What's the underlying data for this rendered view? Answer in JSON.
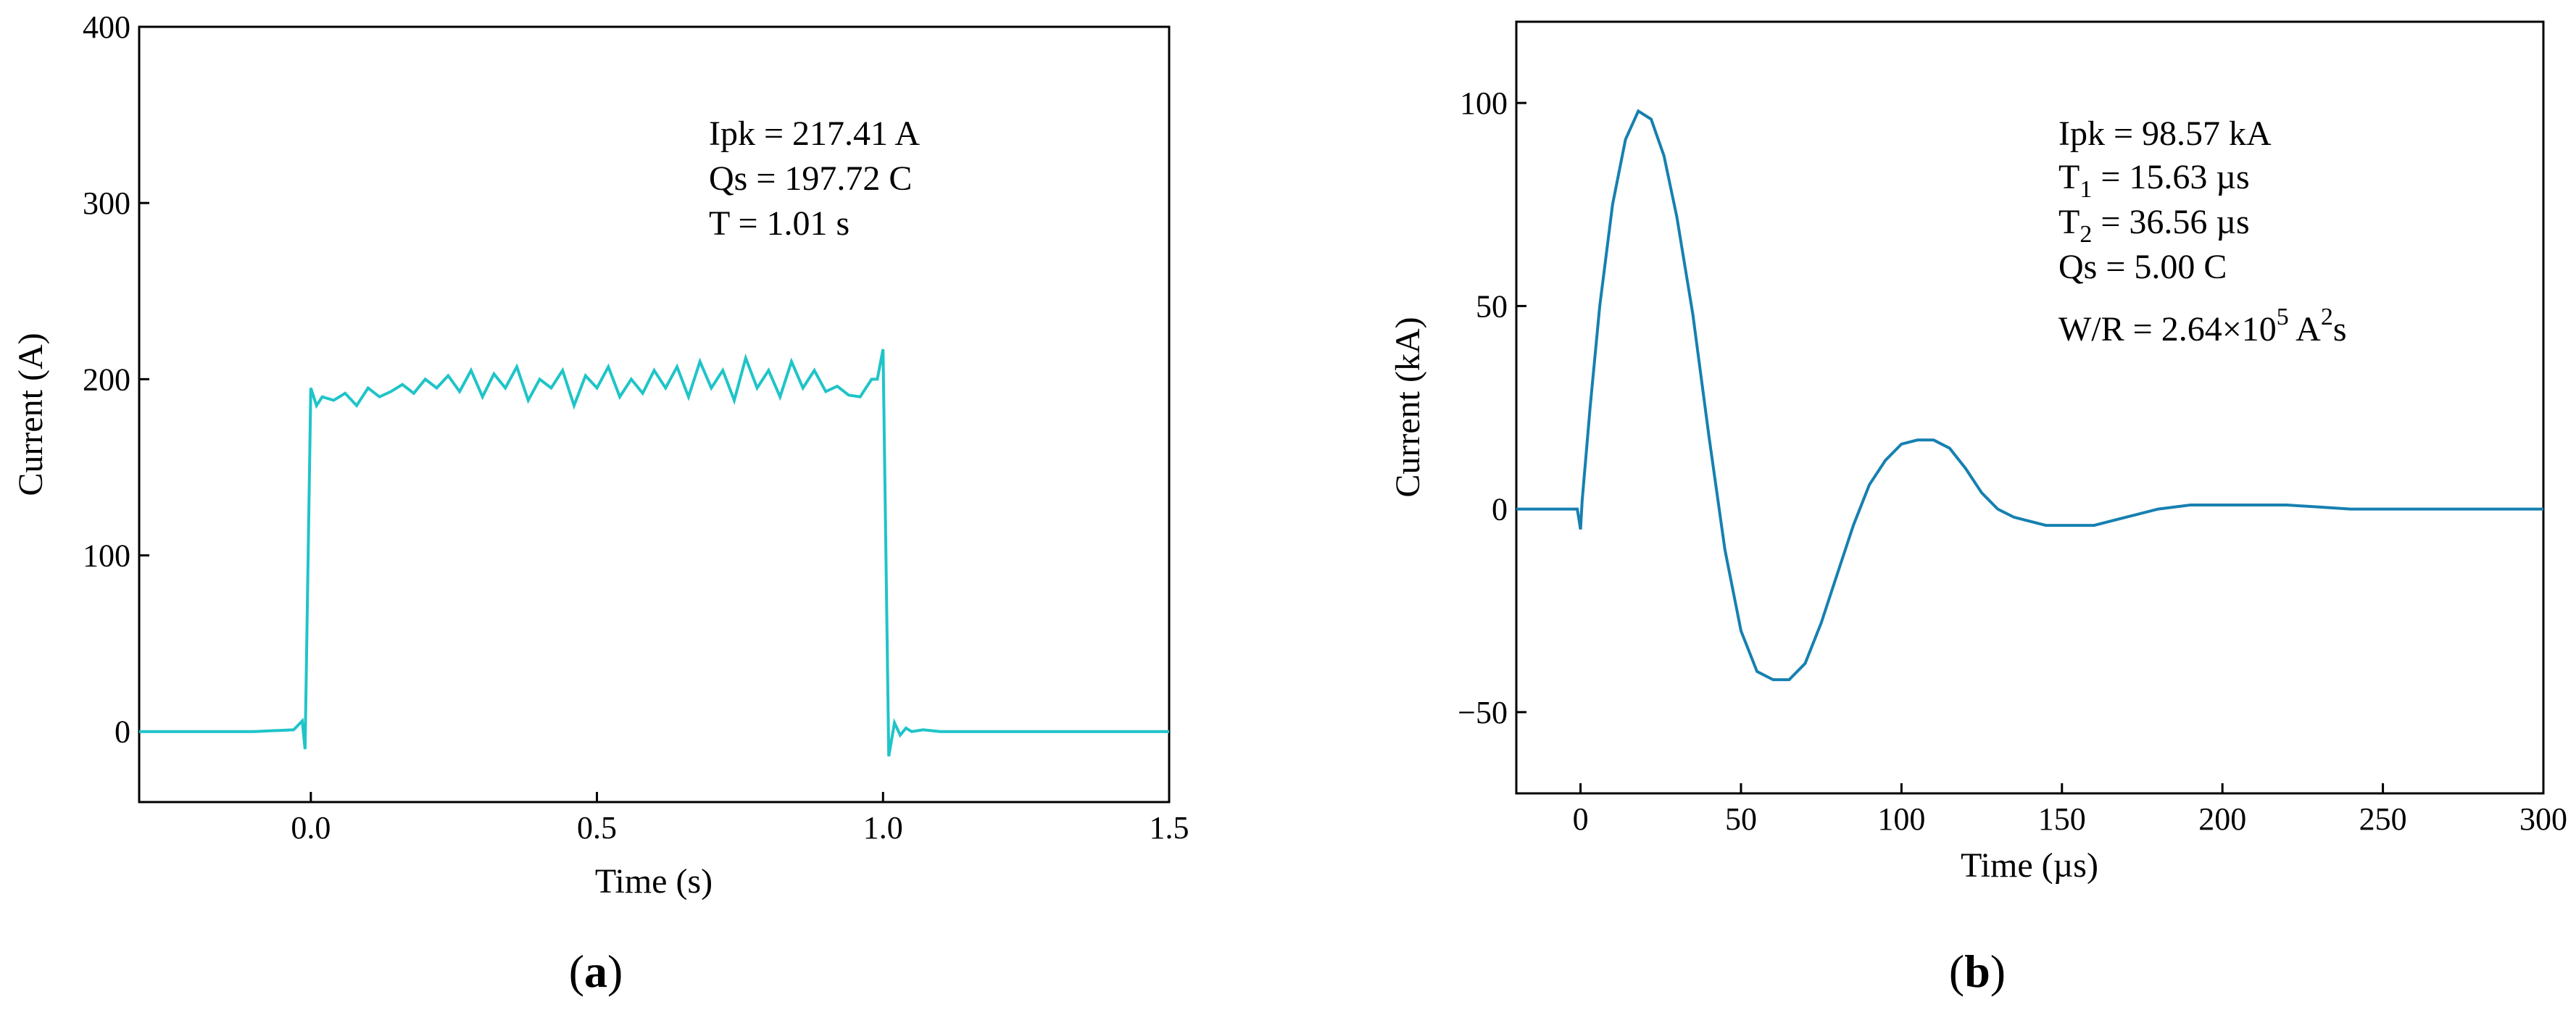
{
  "chart_data": [
    {
      "type": "line",
      "panel_label": "(a)",
      "xlabel": "Time (s)",
      "ylabel": "Current (A)",
      "xlim": [
        -0.3,
        1.5
      ],
      "ylim": [
        -40,
        400
      ],
      "xticks": [
        0.0,
        0.5,
        1.0,
        1.5
      ],
      "xtick_labels": [
        "0.0",
        "0.5",
        "1.0",
        "1.5"
      ],
      "yticks": [
        0,
        100,
        200,
        300,
        400
      ],
      "ytick_labels": [
        "0",
        "100",
        "200",
        "300",
        "400"
      ],
      "grid": false,
      "color": "#1fc4c8",
      "annotations": [
        "Ipk = 217.41 A",
        "Qs = 197.72 C",
        "T = 1.01 s"
      ],
      "series": [
        {
          "x": [
            -0.3,
            -0.2,
            -0.1,
            -0.03,
            -0.015,
            -0.01,
            0.0,
            0.01,
            0.02,
            0.04,
            0.06,
            0.08,
            0.1,
            0.12,
            0.14,
            0.16,
            0.18,
            0.2,
            0.22,
            0.24,
            0.26,
            0.28,
            0.3,
            0.32,
            0.34,
            0.36,
            0.38,
            0.4,
            0.42,
            0.44,
            0.46,
            0.48,
            0.5,
            0.52,
            0.54,
            0.56,
            0.58,
            0.6,
            0.62,
            0.64,
            0.66,
            0.68,
            0.7,
            0.72,
            0.74,
            0.76,
            0.78,
            0.8,
            0.82,
            0.84,
            0.86,
            0.88,
            0.9,
            0.92,
            0.94,
            0.96,
            0.98,
            0.99,
            1.0,
            1.01,
            1.02,
            1.03,
            1.04,
            1.05,
            1.07,
            1.1,
            1.2,
            1.3,
            1.4,
            1.5
          ],
          "y": [
            0,
            0,
            0,
            1,
            6,
            -10,
            195,
            185,
            190,
            188,
            192,
            185,
            195,
            190,
            193,
            197,
            192,
            200,
            195,
            202,
            193,
            205,
            190,
            203,
            195,
            207,
            188,
            200,
            195,
            205,
            185,
            202,
            195,
            207,
            190,
            200,
            192,
            205,
            195,
            207,
            190,
            210,
            195,
            205,
            188,
            212,
            195,
            205,
            190,
            210,
            195,
            205,
            193,
            196,
            191,
            190,
            200,
            200,
            217,
            -14,
            5,
            -2,
            2,
            0,
            1,
            0,
            0,
            0,
            0,
            0
          ]
        }
      ]
    },
    {
      "type": "line",
      "panel_label": "(b)",
      "xlabel": "Time (µs)",
      "ylabel": "Current (kA)",
      "xlim": [
        -20,
        300
      ],
      "ylim": [
        -70,
        120
      ],
      "xticks": [
        0,
        50,
        100,
        150,
        200,
        250,
        300
      ],
      "xtick_labels": [
        "0",
        "50",
        "100",
        "150",
        "200",
        "250",
        "300"
      ],
      "yticks": [
        -50,
        0,
        50,
        100
      ],
      "ytick_labels": [
        "−50",
        "0",
        "50",
        "100"
      ],
      "grid": false,
      "color": "#1680b0",
      "annotations": [
        {
          "base": "Ipk = 98.57 kA"
        },
        {
          "base": "T",
          "sub": "1",
          "rest": " = 15.63 µs"
        },
        {
          "base": "T",
          "sub": "2",
          "rest": " = 36.56 µs"
        },
        {
          "base": "Qs = 5.00 C"
        },
        {
          "base": "W/R = 2.64×10",
          "sup": "5",
          "mid": " A",
          "sup2": "2",
          "end": "s"
        }
      ],
      "series": [
        {
          "x": [
            -20,
            -10,
            -1,
            0,
            0.5,
            3,
            6,
            10,
            14,
            18,
            22,
            26,
            30,
            35,
            40,
            45,
            50,
            55,
            60,
            65,
            70,
            75,
            80,
            85,
            90,
            95,
            100,
            105,
            110,
            115,
            120,
            125,
            130,
            135,
            140,
            145,
            150,
            155,
            160,
            165,
            170,
            180,
            190,
            200,
            210,
            220,
            230,
            240,
            250,
            260,
            270,
            280,
            290,
            300
          ],
          "y": [
            0,
            0,
            0,
            -5,
            2,
            25,
            50,
            75,
            91,
            98,
            96,
            87,
            72,
            48,
            18,
            -10,
            -30,
            -40,
            -42,
            -42,
            -38,
            -28,
            -16,
            -4,
            6,
            12,
            16,
            17,
            17,
            15,
            10,
            4,
            0,
            -2,
            -3,
            -4,
            -4,
            -4,
            -4,
            -3,
            -2,
            0,
            1,
            1,
            1,
            1,
            0.5,
            0,
            0,
            0,
            0,
            0,
            0,
            0
          ]
        }
      ]
    }
  ]
}
